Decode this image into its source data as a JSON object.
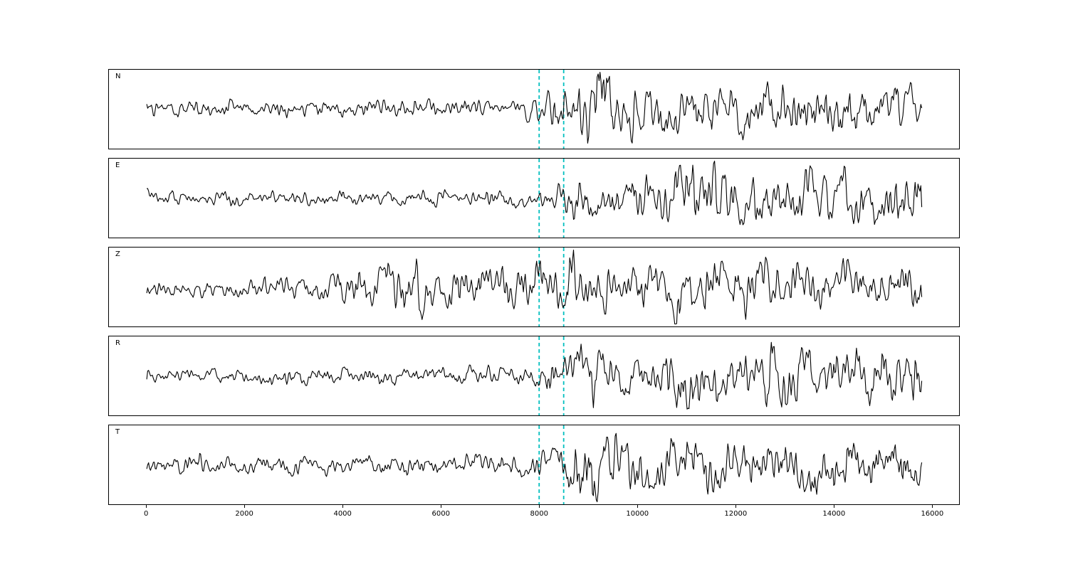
{
  "figure": {
    "background": "#ffffff",
    "panel_border_color": "#000000",
    "trace_color": "#000000",
    "pick_line_color": "#00bfbf",
    "pick_line_style": "dashed"
  },
  "chart_data": {
    "type": "line",
    "title": "",
    "xlabel": "",
    "ylabel": "",
    "grid": false,
    "legend": "none",
    "x_range": [
      -770,
      16560
    ],
    "x_ticks": [
      0,
      2000,
      4000,
      6000,
      8000,
      10000,
      12000,
      14000,
      16000
    ],
    "trace_span": [
      0,
      15800
    ],
    "vertical_lines": [
      8000,
      8500
    ],
    "channels": [
      {
        "label": "N",
        "seed": 7,
        "envelope": [
          [
            0,
            0.2
          ],
          [
            3800,
            0.23
          ],
          [
            7600,
            0.26
          ],
          [
            8000,
            0.55
          ],
          [
            8300,
            0.8
          ],
          [
            9000,
            0.92
          ],
          [
            9600,
            0.8
          ],
          [
            10500,
            0.55
          ],
          [
            12000,
            0.6
          ],
          [
            14000,
            0.62
          ],
          [
            15800,
            0.5
          ]
        ]
      },
      {
        "label": "E",
        "seed": 13,
        "envelope": [
          [
            0,
            0.17
          ],
          [
            7800,
            0.2
          ],
          [
            8300,
            0.45
          ],
          [
            9000,
            0.6
          ],
          [
            10000,
            0.55
          ],
          [
            11000,
            0.8
          ],
          [
            11800,
            0.9
          ],
          [
            12500,
            0.6
          ],
          [
            13800,
            0.75
          ],
          [
            15800,
            0.6
          ]
        ]
      },
      {
        "label": "Z",
        "seed": 29,
        "envelope": [
          [
            0,
            0.22
          ],
          [
            3600,
            0.25
          ],
          [
            4000,
            0.5
          ],
          [
            5000,
            0.55
          ],
          [
            5600,
            0.65
          ],
          [
            6500,
            0.45
          ],
          [
            7500,
            0.5
          ],
          [
            8200,
            0.6
          ],
          [
            8600,
            0.85
          ],
          [
            9500,
            0.6
          ],
          [
            11000,
            0.7
          ],
          [
            12500,
            0.6
          ],
          [
            14000,
            0.55
          ],
          [
            15800,
            0.5
          ]
        ]
      },
      {
        "label": "R",
        "seed": 41,
        "envelope": [
          [
            0,
            0.18
          ],
          [
            7800,
            0.22
          ],
          [
            8300,
            0.5
          ],
          [
            9000,
            0.65
          ],
          [
            10000,
            0.5
          ],
          [
            11000,
            0.85
          ],
          [
            11800,
            0.6
          ],
          [
            12800,
            0.9
          ],
          [
            13500,
            0.6
          ],
          [
            14500,
            0.7
          ],
          [
            15800,
            0.65
          ]
        ]
      },
      {
        "label": "T",
        "seed": 53,
        "envelope": [
          [
            0,
            0.22
          ],
          [
            7800,
            0.26
          ],
          [
            8400,
            0.5
          ],
          [
            8900,
            0.95
          ],
          [
            9700,
            0.85
          ],
          [
            10500,
            0.6
          ],
          [
            11500,
            0.7
          ],
          [
            12500,
            0.65
          ],
          [
            13600,
            0.75
          ],
          [
            14500,
            0.6
          ],
          [
            15800,
            0.55
          ]
        ]
      }
    ]
  }
}
